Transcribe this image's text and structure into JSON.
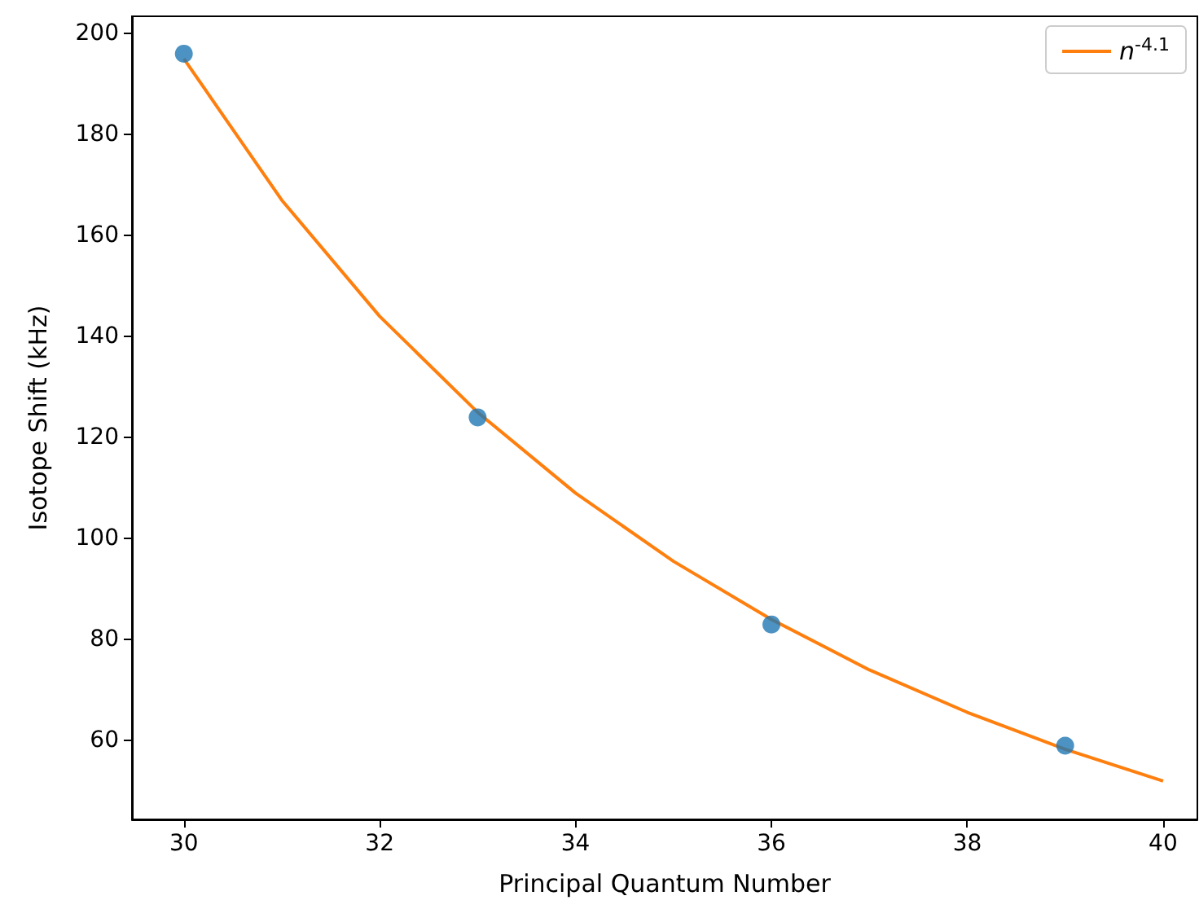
{
  "chart_data": {
    "type": "scatter",
    "xlabel": "Principal Quantum Number",
    "ylabel": "Isotope Shift (kHz)",
    "xlim": [
      29.47,
      40.35
    ],
    "xticks": [
      30,
      32,
      34,
      36,
      38,
      40
    ],
    "ylim": [
      44.4,
      203.4
    ],
    "yticks": [
      60,
      80,
      100,
      120,
      140,
      160,
      180,
      200
    ],
    "grid": false,
    "legend": "top right",
    "series": [
      {
        "type": "scatter",
        "color": "#1f77b4",
        "marker": "circle",
        "x": [
          30,
          33,
          36,
          39
        ],
        "values": [
          196,
          124,
          83,
          59
        ]
      },
      {
        "type": "line",
        "name": "n$^{-4.1}$",
        "color": "#ff7f0e",
        "marker": "none",
        "x": [
          30,
          31,
          32,
          33,
          34,
          35,
          36,
          37,
          38,
          39,
          40
        ],
        "values": [
          195,
          167,
          144,
          125,
          109,
          95.5,
          84,
          74,
          65.6,
          58.3,
          52
        ]
      }
    ]
  }
}
